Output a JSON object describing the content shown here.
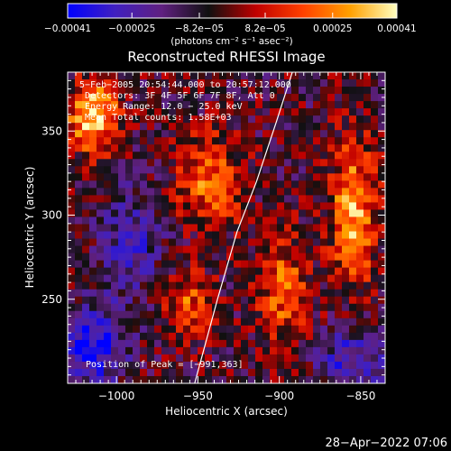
{
  "chart_data": {
    "type": "heatmap",
    "title": "Reconstructed RHESSI Image",
    "xlabel": "Heliocentric X (arcsec)",
    "ylabel": "Heliocentric Y (arcsec)",
    "xlim": [
      -1030,
      -835
    ],
    "ylim": [
      200,
      385
    ],
    "x_ticks": [
      -1000,
      -950,
      -900,
      -850
    ],
    "x_tick_labels": [
      "−1000",
      "−950",
      "−900",
      "−850"
    ],
    "y_ticks": [
      250,
      300,
      350
    ],
    "y_tick_labels": [
      "250",
      "300",
      "350"
    ],
    "colorbar": {
      "range": [
        -0.00041,
        0.00041
      ],
      "ticks": [
        -0.00041,
        -0.00025,
        -8.2e-05,
        8.2e-05,
        0.00025,
        0.00041
      ],
      "tick_labels": [
        "−0.00041",
        "−0.00025",
        "−8.2e−05",
        "8.2e−05",
        "0.00025",
        "0.00041"
      ],
      "unit_label": "(photons cm⁻² s⁻¹ asec⁻²)",
      "colors": [
        "#0000ff",
        "#4020c0",
        "#602080",
        "#101010",
        "#c00000",
        "#ff4000",
        "#ffa000",
        "#ffffc0"
      ]
    },
    "annotations": [
      "5−Feb−2005 20:54:44.000 to 20:57:12.000",
      "Detectors: 3F 4F 5F 6F 7F 8F, Att 0",
      "Energy Range: 12.0 − 25.0 keV",
      "Mean    Total counts: 1.58E+03"
    ],
    "peak_label": "Position of Peak = [−991,363]",
    "limb_curve": {
      "x": [
        -952,
        -938,
        -926,
        -914,
        -902,
        -892
      ],
      "y": [
        200,
        250,
        290,
        320,
        355,
        385
      ]
    },
    "image_description": "Pixelated flux map; bright orange/yellow emission upper-left and along right side, purple/blue negative regions lower-left and lower-right"
  },
  "footer": {
    "timestamp": "28−Apr−2022 07:06"
  }
}
